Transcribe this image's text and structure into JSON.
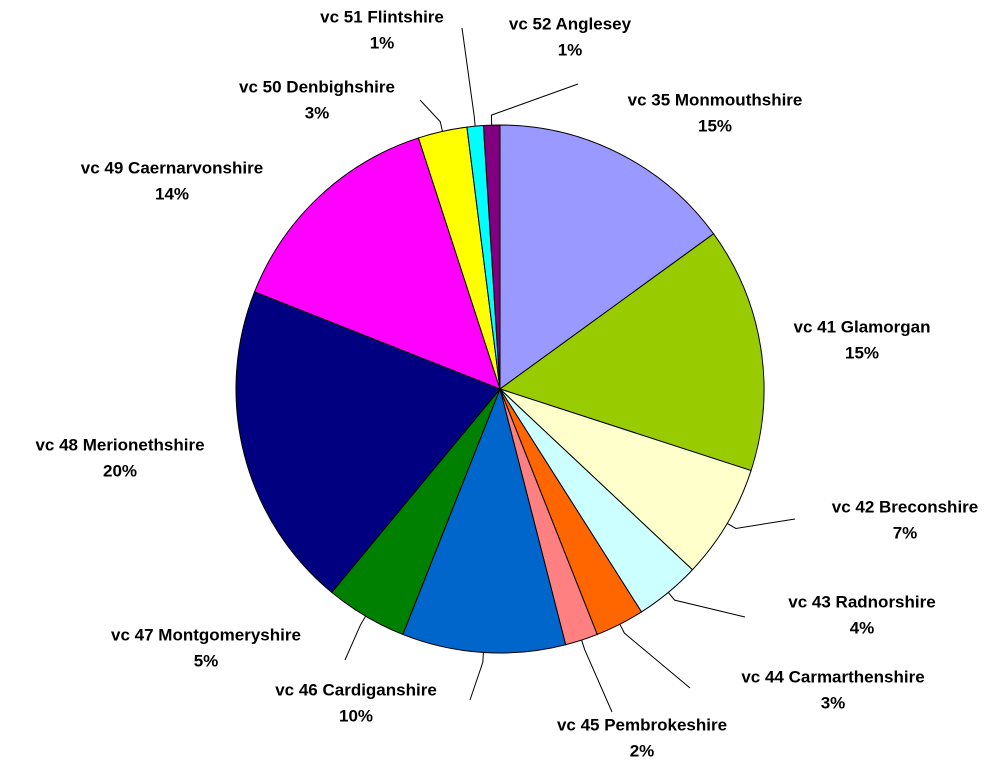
{
  "chart_data": {
    "type": "pie",
    "categories": [
      "vc 35 Monmouthshire",
      "vc 41 Glamorgan",
      "vc 42 Breconshire",
      "vc 43 Radnorshire",
      "vc 44 Carmarthenshire",
      "vc 45 Pembrokeshire",
      "vc 46 Cardiganshire",
      "vc 47 Montgomeryshire",
      "vc 48 Merionethshire",
      "vc 49 Caernarvonshire",
      "vc 50 Denbighshire",
      "vc 51 Flintshire",
      "vc 52 Anglesey"
    ],
    "values": [
      15,
      15,
      7,
      4,
      3,
      2,
      10,
      5,
      20,
      14,
      3,
      1,
      1
    ],
    "value_labels": [
      "15%",
      "15%",
      "7%",
      "4%",
      "3%",
      "2%",
      "10%",
      "5%",
      "20%",
      "14%",
      "3%",
      "1%",
      "1%"
    ],
    "colors": [
      "#9999ff",
      "#99cc00",
      "#ffffcc",
      "#ccffff",
      "#ff6600",
      "#ff8080",
      "#0066cc",
      "#008000",
      "#000080",
      "#ff00ff",
      "#ffff00",
      "#00ffff",
      "#800080"
    ]
  }
}
